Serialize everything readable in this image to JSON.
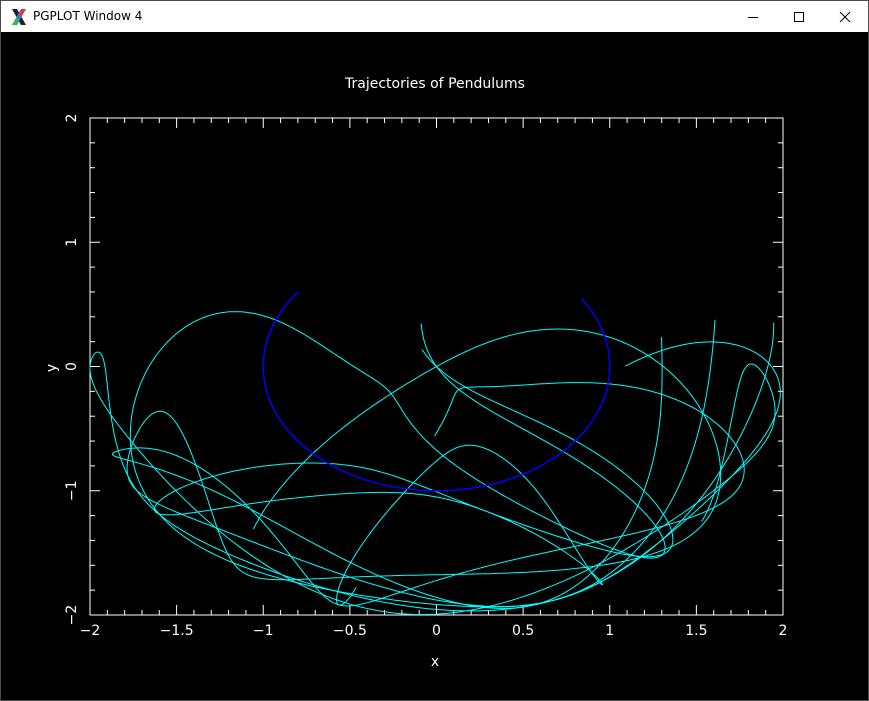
{
  "window": {
    "title": "PGPLOT Window 4"
  },
  "colors": {
    "background": "#000000",
    "axes": "#ffffff",
    "trajectories": "#00ffff",
    "pendulum_circle": "#0000ff"
  },
  "icons": {
    "app": "x11-icon",
    "minimize": "minimize-icon",
    "maximize": "maximize-icon",
    "close": "close-icon"
  },
  "chart_data": {
    "type": "line",
    "title": "Trajectories of Pendulums",
    "xlabel": "x",
    "ylabel": "y",
    "xlim": [
      -2,
      2
    ],
    "ylim": [
      -2,
      2
    ],
    "x_ticks": [
      "−2",
      "−1.5",
      "−1",
      "−0.5",
      "0",
      "0.5",
      "1",
      "1.5",
      "2"
    ],
    "y_ticks": [
      "−2",
      "−1",
      "0",
      "1",
      "2"
    ],
    "grid": false
  }
}
